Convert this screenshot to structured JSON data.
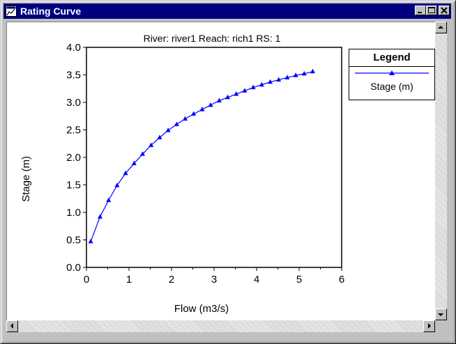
{
  "window": {
    "title": "Rating Curve",
    "title_bar_color": "#000080"
  },
  "chart_data": {
    "type": "line",
    "title": "River: river1   Reach: rich1   RS: 1",
    "xlabel": "Flow (m3/s)",
    "ylabel": "Stage (m)",
    "xlim": [
      0,
      6
    ],
    "ylim": [
      0,
      4
    ],
    "xticks": [
      "0",
      "1",
      "2",
      "3",
      "4",
      "5",
      "6"
    ],
    "yticks": [
      "0.0",
      "0.5",
      "1.0",
      "1.5",
      "2.0",
      "2.5",
      "3.0",
      "3.5",
      "4.0"
    ],
    "grid": false,
    "legend": {
      "title": "Legend",
      "placement": "right",
      "entries": [
        "Stage (m)"
      ]
    },
    "series": [
      {
        "name": "Stage (m)",
        "color": "#0000ff",
        "marker": "triangle",
        "x": [
          0.1,
          0.32,
          0.52,
          0.72,
          0.92,
          1.12,
          1.32,
          1.52,
          1.72,
          1.92,
          2.12,
          2.32,
          2.52,
          2.72,
          2.92,
          3.12,
          3.32,
          3.52,
          3.72,
          3.92,
          4.12,
          4.32,
          4.52,
          4.72,
          4.92,
          5.12,
          5.32
        ],
        "y": [
          0.47,
          0.92,
          1.22,
          1.49,
          1.71,
          1.89,
          2.06,
          2.22,
          2.36,
          2.49,
          2.6,
          2.7,
          2.79,
          2.87,
          2.95,
          3.03,
          3.09,
          3.15,
          3.21,
          3.27,
          3.32,
          3.37,
          3.41,
          3.45,
          3.49,
          3.52,
          3.56
        ]
      }
    ]
  }
}
